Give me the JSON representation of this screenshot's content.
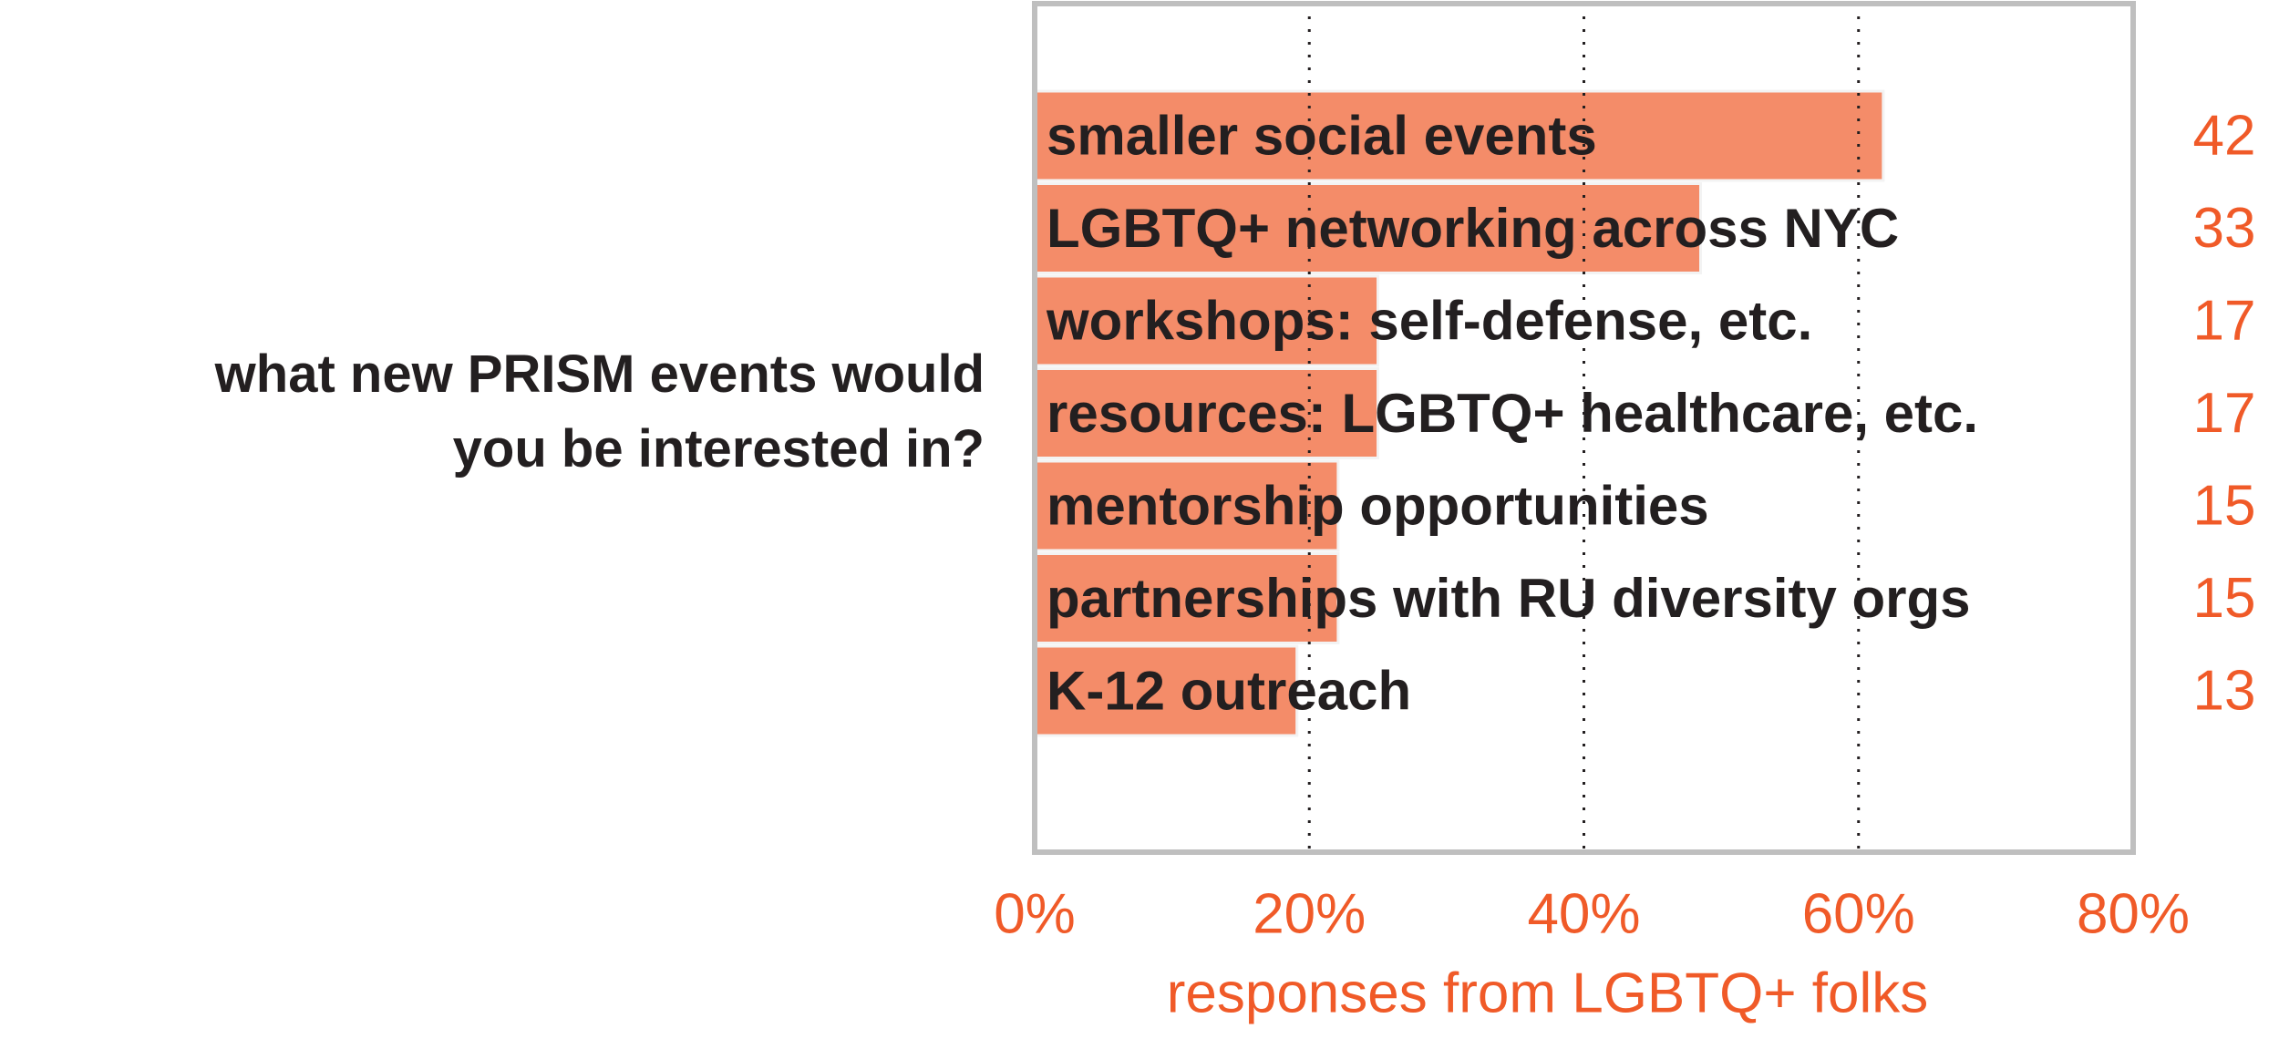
{
  "question_lines": [
    "what new PRISM events would",
    "you be interested in?"
  ],
  "colors": {
    "bar": "#f48c69",
    "bar_edge": "#f3f3f3",
    "accent_text": "#f05a28",
    "label_text": "#231f20",
    "frame": "#bfbfbf",
    "gridline": "#231f20"
  },
  "chart_data": {
    "type": "bar",
    "orientation": "horizontal",
    "categories": [
      "smaller social events",
      "LGBTQ+ networking across NYC",
      "workshops: self-defense, etc.",
      "resources: LGBTQ+ healthcare, etc.",
      "mentorship opportunities",
      "partnerships with RU diversity orgs",
      "K-12 outreach"
    ],
    "counts": [
      "42",
      "33",
      "17",
      "17",
      "15",
      "15",
      "13"
    ],
    "values": [
      61.8,
      48.5,
      25.0,
      25.0,
      22.1,
      22.1,
      19.1
    ],
    "value_unit": "percent of responses",
    "xlim": [
      0,
      80
    ],
    "xticks": [
      0,
      20,
      40,
      60,
      80
    ],
    "xtick_labels": [
      "0%",
      "20%",
      "40%",
      "60%",
      "80%"
    ],
    "xlabel": "responses from LGBTQ+ folks",
    "title": "",
    "ylabel": "",
    "grid": "vertical dotted at 20%, 40%, 60%",
    "legend": "none"
  }
}
